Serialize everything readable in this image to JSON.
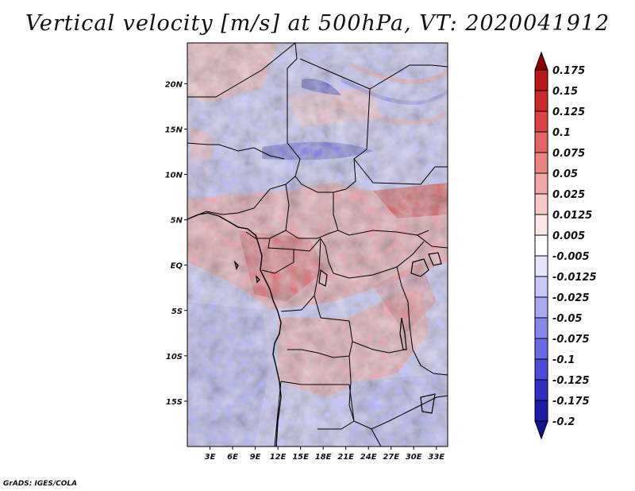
{
  "title": "Vertical velocity [m/s] at 500hPa, VT: 2020041912",
  "footer": "GrADS: IGES/COLA",
  "map": {
    "lon_range": [
      0,
      34.5
    ],
    "lat_range": [
      -20,
      24.5
    ],
    "lat_ticks": [
      {
        "value": 20,
        "label": "20N"
      },
      {
        "value": 15,
        "label": "15N"
      },
      {
        "value": 10,
        "label": "10N"
      },
      {
        "value": 5,
        "label": "5N"
      },
      {
        "value": 0,
        "label": "EQ"
      },
      {
        "value": -5,
        "label": "5S"
      },
      {
        "value": -10,
        "label": "10S"
      },
      {
        "value": -15,
        "label": "15S"
      }
    ],
    "lon_ticks": [
      {
        "value": 3,
        "label": "3E"
      },
      {
        "value": 6,
        "label": "6E"
      },
      {
        "value": 9,
        "label": "9E"
      },
      {
        "value": 12,
        "label": "12E"
      },
      {
        "value": 15,
        "label": "15E"
      },
      {
        "value": 18,
        "label": "18E"
      },
      {
        "value": 21,
        "label": "21E"
      },
      {
        "value": 24,
        "label": "24E"
      },
      {
        "value": 27,
        "label": "27E"
      },
      {
        "value": 30,
        "label": "30E"
      },
      {
        "value": 33,
        "label": "33E"
      }
    ]
  },
  "colorbar": {
    "levels": [
      {
        "label": "0.175",
        "color": "#a01010"
      },
      {
        "label": "0.15",
        "color": "#b81818"
      },
      {
        "label": "0.125",
        "color": "#cc2a2a"
      },
      {
        "label": "0.1",
        "color": "#dc4444"
      },
      {
        "label": "0.075",
        "color": "#e56464"
      },
      {
        "label": "0.05",
        "color": "#ec8484"
      },
      {
        "label": "0.025",
        "color": "#f3a6a6"
      },
      {
        "label": "0.0125",
        "color": "#f8c8c8"
      },
      {
        "label": "0.005",
        "color": "#fce6e6"
      },
      {
        "label": "-0.005",
        "color": "#ffffff"
      },
      {
        "label": "-0.0125",
        "color": "#e4e4fc"
      },
      {
        "label": "-0.025",
        "color": "#c8c8f8"
      },
      {
        "label": "-0.05",
        "color": "#a8a8f4"
      },
      {
        "label": "-0.075",
        "color": "#8888ec"
      },
      {
        "label": "-0.1",
        "color": "#6a6ae4"
      },
      {
        "label": "-0.125",
        "color": "#4c4cd8"
      },
      {
        "label": "-0.175",
        "color": "#3030c4"
      },
      {
        "label": "-0.2",
        "color": "#1c1ca8"
      }
    ],
    "top_arrow_color": "#8c0000",
    "bottom_arrow_color": "#14148c"
  }
}
